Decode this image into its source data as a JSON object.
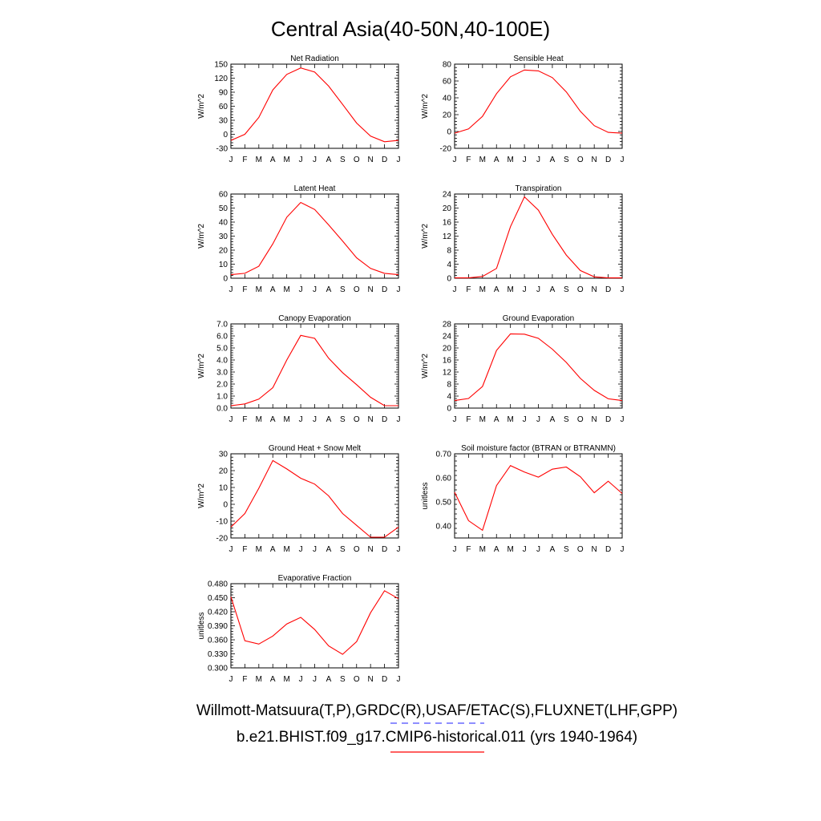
{
  "page": {
    "title": "Central Asia(40-50N,40-100E)",
    "legend": {
      "obs_label": "Willmott-Matsuura(T,P),GRDC(R),USAF/ETAC(S),FLUXNET(LHF,GPP)",
      "model_label": "b.e21.BHIST.f09_g17.CMIP6-historical.011 (yrs 1940-1964)",
      "obs_color": "#4a4aff",
      "model_color": "#ff0000"
    }
  },
  "chart_data": [
    {
      "type": "line",
      "title": "Net Radiation",
      "xlabel": "",
      "ylabel": "W/m^2",
      "categories": [
        "J",
        "F",
        "M",
        "A",
        "M",
        "J",
        "J",
        "A",
        "S",
        "O",
        "N",
        "D",
        "J"
      ],
      "ylim": [
        -30,
        150
      ],
      "yticks": [
        "-30",
        "0",
        "30",
        "60",
        "90",
        "120",
        "150"
      ],
      "series": [
        {
          "color": "#ff0000",
          "values": [
            -13,
            0,
            36,
            95,
            128,
            142,
            133,
            103,
            64,
            24,
            -4,
            -16,
            -13
          ]
        }
      ]
    },
    {
      "type": "line",
      "title": "Sensible Heat",
      "xlabel": "",
      "ylabel": "W/m^2",
      "categories": [
        "J",
        "F",
        "M",
        "A",
        "M",
        "J",
        "J",
        "A",
        "S",
        "O",
        "N",
        "D",
        "J"
      ],
      "ylim": [
        -20,
        80
      ],
      "yticks": [
        "-20",
        "0",
        "20",
        "40",
        "60",
        "80"
      ],
      "series": [
        {
          "color": "#ff0000",
          "values": [
            -2,
            3,
            18,
            45,
            65,
            73,
            72,
            64,
            47,
            24,
            7,
            -1,
            -2
          ]
        }
      ]
    },
    {
      "type": "line",
      "title": "Latent Heat",
      "xlabel": "",
      "ylabel": "W/m^2",
      "categories": [
        "J",
        "F",
        "M",
        "A",
        "M",
        "J",
        "J",
        "A",
        "S",
        "O",
        "N",
        "D",
        "J"
      ],
      "ylim": [
        0,
        60
      ],
      "yticks": [
        "0",
        "10",
        "20",
        "30",
        "40",
        "50",
        "60"
      ],
      "series": [
        {
          "color": "#ff0000",
          "values": [
            2.5,
            3.5,
            8.5,
            24.5,
            43.5,
            54,
            49,
            38,
            26.5,
            14.5,
            7,
            3.5,
            2.5
          ]
        }
      ]
    },
    {
      "type": "line",
      "title": "Transpiration",
      "xlabel": "",
      "ylabel": "W/m^2",
      "categories": [
        "J",
        "F",
        "M",
        "A",
        "M",
        "J",
        "J",
        "A",
        "S",
        "O",
        "N",
        "D",
        "J"
      ],
      "ylim": [
        0,
        24
      ],
      "yticks": [
        "0",
        "4",
        "8",
        "12",
        "16",
        "20",
        "24"
      ],
      "series": [
        {
          "color": "#ff0000",
          "values": [
            0.1,
            0.1,
            0.5,
            2.8,
            14.7,
            23.2,
            19.4,
            12.5,
            6.6,
            2.2,
            0.4,
            0.1,
            0.1
          ]
        }
      ]
    },
    {
      "type": "line",
      "title": "Canopy Evaporation",
      "xlabel": "",
      "ylabel": "W/m^2",
      "categories": [
        "J",
        "F",
        "M",
        "A",
        "M",
        "J",
        "J",
        "A",
        "S",
        "O",
        "N",
        "D",
        "J"
      ],
      "ylim": [
        0,
        7
      ],
      "yticks": [
        "0.0",
        "1.0",
        "2.0",
        "3.0",
        "4.0",
        "5.0",
        "6.0",
        "7.0"
      ],
      "series": [
        {
          "color": "#ff0000",
          "values": [
            0.2,
            0.35,
            0.75,
            1.7,
            4.0,
            6.05,
            5.8,
            4.15,
            2.95,
            1.95,
            0.9,
            0.2,
            0.2
          ]
        }
      ]
    },
    {
      "type": "line",
      "title": "Ground Evaporation",
      "xlabel": "",
      "ylabel": "W/m^2",
      "categories": [
        "J",
        "F",
        "M",
        "A",
        "M",
        "J",
        "J",
        "A",
        "S",
        "O",
        "N",
        "D",
        "J"
      ],
      "ylim": [
        0,
        28
      ],
      "yticks": [
        "0",
        "4",
        "8",
        "12",
        "16",
        "20",
        "24",
        "28"
      ],
      "series": [
        {
          "color": "#ff0000",
          "values": [
            2.5,
            3.2,
            7.2,
            19.2,
            24.7,
            24.6,
            23.2,
            19.6,
            15.2,
            9.9,
            5.9,
            3.1,
            2.5
          ]
        }
      ]
    },
    {
      "type": "line",
      "title": "Ground Heat + Snow Melt",
      "xlabel": "",
      "ylabel": "W/m^2",
      "categories": [
        "J",
        "F",
        "M",
        "A",
        "M",
        "J",
        "J",
        "A",
        "S",
        "O",
        "N",
        "D",
        "J"
      ],
      "ylim": [
        -20,
        30
      ],
      "yticks": [
        "-20",
        "-10",
        "0",
        "10",
        "20",
        "30"
      ],
      "series": [
        {
          "color": "#ff0000",
          "values": [
            -13.5,
            -5.5,
            9.5,
            26,
            21,
            15.5,
            12,
            5,
            -5.5,
            -12.5,
            -19.5,
            -19.5,
            -13.5
          ]
        }
      ]
    },
    {
      "type": "line",
      "title": "Soil moisture factor (BTRAN or BTRANMN)",
      "xlabel": "",
      "ylabel": "unitless",
      "categories": [
        "J",
        "F",
        "M",
        "A",
        "M",
        "J",
        "J",
        "A",
        "S",
        "O",
        "N",
        "D",
        "J"
      ],
      "ylim": [
        0.35,
        0.7
      ],
      "yticks": [
        "0.40",
        "0.50",
        "0.60",
        "0.70"
      ],
      "series": [
        {
          "color": "#ff0000",
          "values": [
            0.54,
            0.422,
            0.382,
            0.568,
            0.651,
            0.624,
            0.603,
            0.636,
            0.645,
            0.605,
            0.538,
            0.586,
            0.535
          ]
        }
      ]
    },
    {
      "type": "line",
      "title": "Evaporative Fraction",
      "xlabel": "",
      "ylabel": "unitless",
      "categories": [
        "J",
        "F",
        "M",
        "A",
        "M",
        "J",
        "J",
        "A",
        "S",
        "O",
        "N",
        "D",
        "J"
      ],
      "ylim": [
        0.3,
        0.48
      ],
      "yticks": [
        "0.300",
        "0.330",
        "0.360",
        "0.390",
        "0.420",
        "0.450",
        "0.480"
      ],
      "series": [
        {
          "color": "#ff0000",
          "values": [
            0.452,
            0.358,
            0.351,
            0.368,
            0.394,
            0.408,
            0.382,
            0.347,
            0.329,
            0.356,
            0.418,
            0.465,
            0.448
          ]
        }
      ]
    }
  ]
}
